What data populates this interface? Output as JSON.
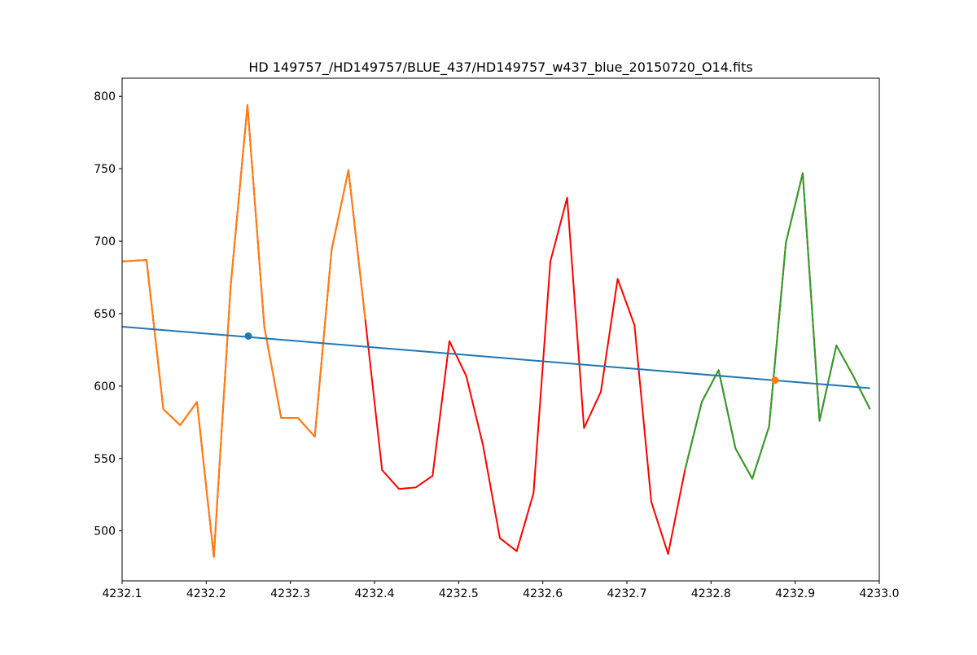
{
  "chart_data": {
    "type": "line",
    "title": "HD 149757_/HD149757/BLUE_437/HD149757_w437_blue_20150720_O14.fits",
    "xlabel": "",
    "ylabel": "",
    "xlim": [
      4232.1,
      4233.0
    ],
    "ylim": [
      465.5,
      812.5
    ],
    "x_ticks": [
      "4232.1",
      "4232.2",
      "4232.3",
      "4232.4",
      "4232.5",
      "4232.6",
      "4232.7",
      "4232.8",
      "4232.9",
      "4233.0"
    ],
    "y_ticks": [
      "500",
      "550",
      "600",
      "650",
      "700",
      "750",
      "800"
    ],
    "grid": false,
    "series": [
      {
        "color": "#ff0000",
        "x": [
          4232.1,
          4232.129,
          4232.149,
          4232.169,
          4232.189,
          4232.209,
          4232.229,
          4232.249,
          4232.269,
          4232.289,
          4232.309,
          4232.329,
          4232.349,
          4232.369,
          4232.389,
          4232.409,
          4232.429,
          4232.449,
          4232.469,
          4232.489,
          4232.509,
          4232.529,
          4232.549,
          4232.569,
          4232.589,
          4232.609,
          4232.629,
          4232.649,
          4232.669,
          4232.689,
          4232.709,
          4232.729,
          4232.749,
          4232.769,
          4232.789,
          4232.809,
          4232.829,
          4232.849,
          4232.869,
          4232.889,
          4232.909,
          4232.929,
          4232.949,
          4232.969,
          4232.989
        ],
        "y": [
          686,
          687,
          584,
          573,
          589,
          482,
          669,
          794,
          641,
          578,
          578,
          565,
          694,
          749,
          646,
          542,
          529,
          530,
          538,
          631,
          607,
          559,
          495,
          486,
          526,
          686,
          730,
          571,
          596,
          674,
          642,
          520,
          484,
          542,
          589,
          611,
          557,
          536,
          572,
          699,
          747,
          576,
          628,
          607,
          584
        ]
      },
      {
        "color": "#ff7f0e",
        "x": [
          4232.1,
          4232.129,
          4232.149,
          4232.169,
          4232.189,
          4232.209,
          4232.229,
          4232.249,
          4232.269,
          4232.289,
          4232.309,
          4232.329,
          4232.349,
          4232.369,
          4232.389
        ],
        "y": [
          686,
          687,
          584,
          573,
          589,
          482,
          669,
          794,
          641,
          578,
          578,
          565,
          694,
          749,
          646
        ]
      },
      {
        "color": "#2ca02c",
        "x": [
          4232.769,
          4232.789,
          4232.809,
          4232.829,
          4232.849,
          4232.869,
          4232.889,
          4232.909,
          4232.929,
          4232.949,
          4232.969,
          4232.989
        ],
        "y": [
          542,
          589,
          611,
          557,
          536,
          572,
          699,
          747,
          576,
          628,
          607,
          584
        ]
      },
      {
        "color": "#1f77b4",
        "x": [
          4232.1,
          4232.989
        ],
        "y": [
          641,
          598.5
        ]
      }
    ],
    "markers": [
      {
        "color": "#1f77b4",
        "x": 4232.25,
        "y": 634.5
      },
      {
        "color": "#ff7f0e",
        "x": 4232.876,
        "y": 604
      }
    ]
  }
}
